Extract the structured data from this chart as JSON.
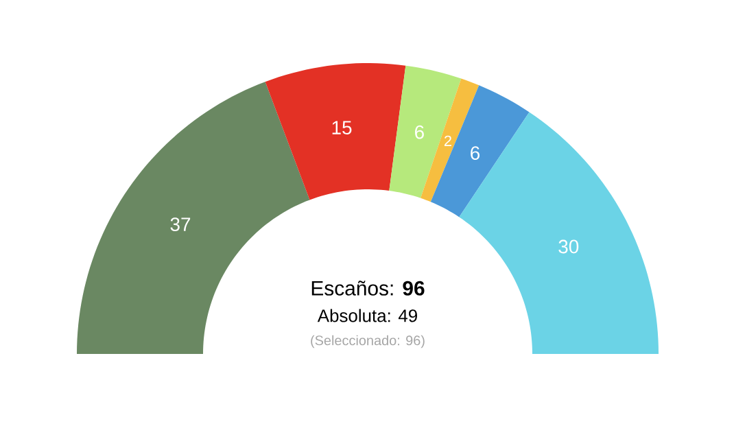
{
  "chart_data": {
    "type": "donut",
    "categories": [
      null,
      null,
      null,
      null,
      null,
      null
    ],
    "values": [
      37,
      15,
      6,
      2,
      6,
      30
    ],
    "colors": [
      "#6a8862",
      "#e33125",
      "#b6e97c",
      "#f6be40",
      "#4b98d8",
      "#6bd3e6"
    ],
    "data_labels": true,
    "annotations": [
      "Escaños: **96**",
      "Absoluta: 49",
      "(Seleccionado: 96)"
    ]
  }
}
